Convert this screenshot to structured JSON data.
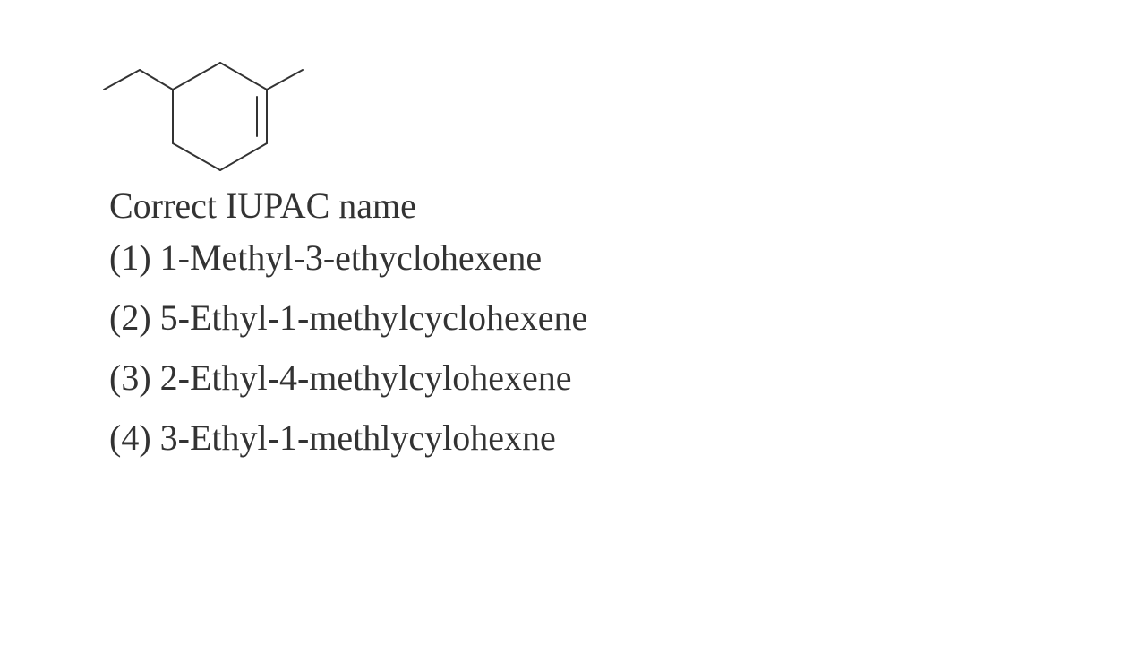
{
  "question": {
    "label": "Correct IUPAC name"
  },
  "options": [
    {
      "number": "(1)",
      "text": "1-Methyl-3-ethyclohexene"
    },
    {
      "number": "(2)",
      "text": "5-Ethyl-1-methylcyclohexene"
    },
    {
      "number": "(3)",
      "text": "2-Ethyl-4-methylcylohexene"
    },
    {
      "number": "(4)",
      "text": "3-Ethyl-1-methlycylohexne"
    }
  ],
  "colors": {
    "text": "#333333",
    "bonds": "#333333",
    "background": "#ffffff"
  }
}
